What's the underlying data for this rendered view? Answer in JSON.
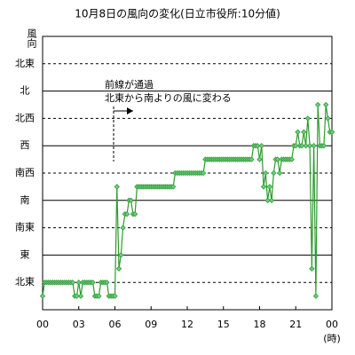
{
  "chart_data": {
    "type": "line",
    "title": "10月8日の風向の変化(日立市役所:10分値)",
    "y_label": "風向",
    "x_label": "(時)",
    "annotation": [
      "前線が通過",
      "北東から南よりの風に変わる"
    ],
    "color": "#2f9a2f",
    "marker_color": "#6fd08a",
    "grid": true,
    "xlim": [
      0,
      1440
    ],
    "xticks": [
      {
        "value": 0,
        "label": "00"
      },
      {
        "value": 180,
        "label": "03"
      },
      {
        "value": 360,
        "label": "06"
      },
      {
        "value": 540,
        "label": "09"
      },
      {
        "value": 720,
        "label": "12"
      },
      {
        "value": 900,
        "label": "15"
      },
      {
        "value": 1080,
        "label": "18"
      },
      {
        "value": 1260,
        "label": "21"
      },
      {
        "value": 1440,
        "label": "00"
      }
    ],
    "ylim": [
      0,
      20
    ],
    "yticks": [
      {
        "value": 2,
        "label": "北東"
      },
      {
        "value": 4,
        "label": "東"
      },
      {
        "value": 6,
        "label": "南東"
      },
      {
        "value": 8,
        "label": "南"
      },
      {
        "value": 10,
        "label": "南西"
      },
      {
        "value": 12,
        "label": "西"
      },
      {
        "value": 14,
        "label": "北西"
      },
      {
        "value": 16,
        "label": "北"
      },
      {
        "value": 18,
        "label": "北東"
      }
    ],
    "x": [
      0,
      10,
      20,
      30,
      40,
      50,
      60,
      70,
      80,
      90,
      100,
      110,
      120,
      130,
      140,
      150,
      160,
      170,
      180,
      190,
      200,
      210,
      220,
      230,
      240,
      250,
      260,
      270,
      280,
      290,
      300,
      310,
      320,
      330,
      340,
      350,
      360,
      370,
      380,
      390,
      400,
      410,
      420,
      430,
      440,
      450,
      460,
      470,
      480,
      490,
      500,
      510,
      520,
      530,
      540,
      550,
      560,
      570,
      580,
      590,
      600,
      610,
      620,
      630,
      640,
      650,
      660,
      670,
      680,
      690,
      700,
      710,
      720,
      730,
      740,
      750,
      760,
      770,
      780,
      790,
      800,
      810,
      820,
      830,
      840,
      850,
      860,
      870,
      880,
      890,
      900,
      910,
      920,
      930,
      940,
      950,
      960,
      970,
      980,
      990,
      1000,
      1010,
      1020,
      1030,
      1040,
      1050,
      1060,
      1070,
      1080,
      1090,
      1100,
      1110,
      1120,
      1130,
      1140,
      1150,
      1160,
      1170,
      1180,
      1190,
      1200,
      1210,
      1220,
      1230,
      1240,
      1250,
      1260,
      1270,
      1280,
      1290,
      1300,
      1310,
      1320,
      1330,
      1340,
      1350,
      1360,
      1370,
      1380,
      1390,
      1400,
      1410,
      1420,
      1430,
      1440
    ],
    "values": [
      1,
      2,
      2,
      2,
      2,
      2,
      2,
      2,
      2,
      2,
      2,
      2,
      2,
      2,
      2,
      2,
      1,
      1,
      2,
      1,
      2,
      2,
      2,
      2,
      2,
      2,
      1,
      1,
      1,
      2,
      2,
      2,
      2,
      1,
      1,
      1,
      1,
      9,
      3,
      4,
      6,
      7,
      7,
      8,
      8,
      7,
      7,
      9,
      9,
      9,
      9,
      9,
      9,
      9,
      9,
      9,
      9,
      9,
      9,
      9,
      9,
      9,
      9,
      9,
      9,
      9,
      10,
      10,
      10,
      10,
      10,
      10,
      10,
      10,
      10,
      10,
      10,
      10,
      10,
      10,
      10,
      11,
      11,
      11,
      11,
      11,
      11,
      11,
      11,
      11,
      11,
      11,
      11,
      11,
      11,
      11,
      11,
      11,
      11,
      11,
      11,
      11,
      11,
      11,
      11,
      12,
      12,
      12,
      11,
      12,
      9,
      10,
      8,
      9,
      8,
      10,
      11,
      11,
      10,
      11,
      11,
      11,
      11,
      11,
      11,
      12,
      12,
      13,
      12,
      12,
      13,
      12,
      14,
      12,
      3,
      12,
      1,
      15,
      12,
      12,
      12,
      15,
      14,
      13,
      13
    ]
  }
}
